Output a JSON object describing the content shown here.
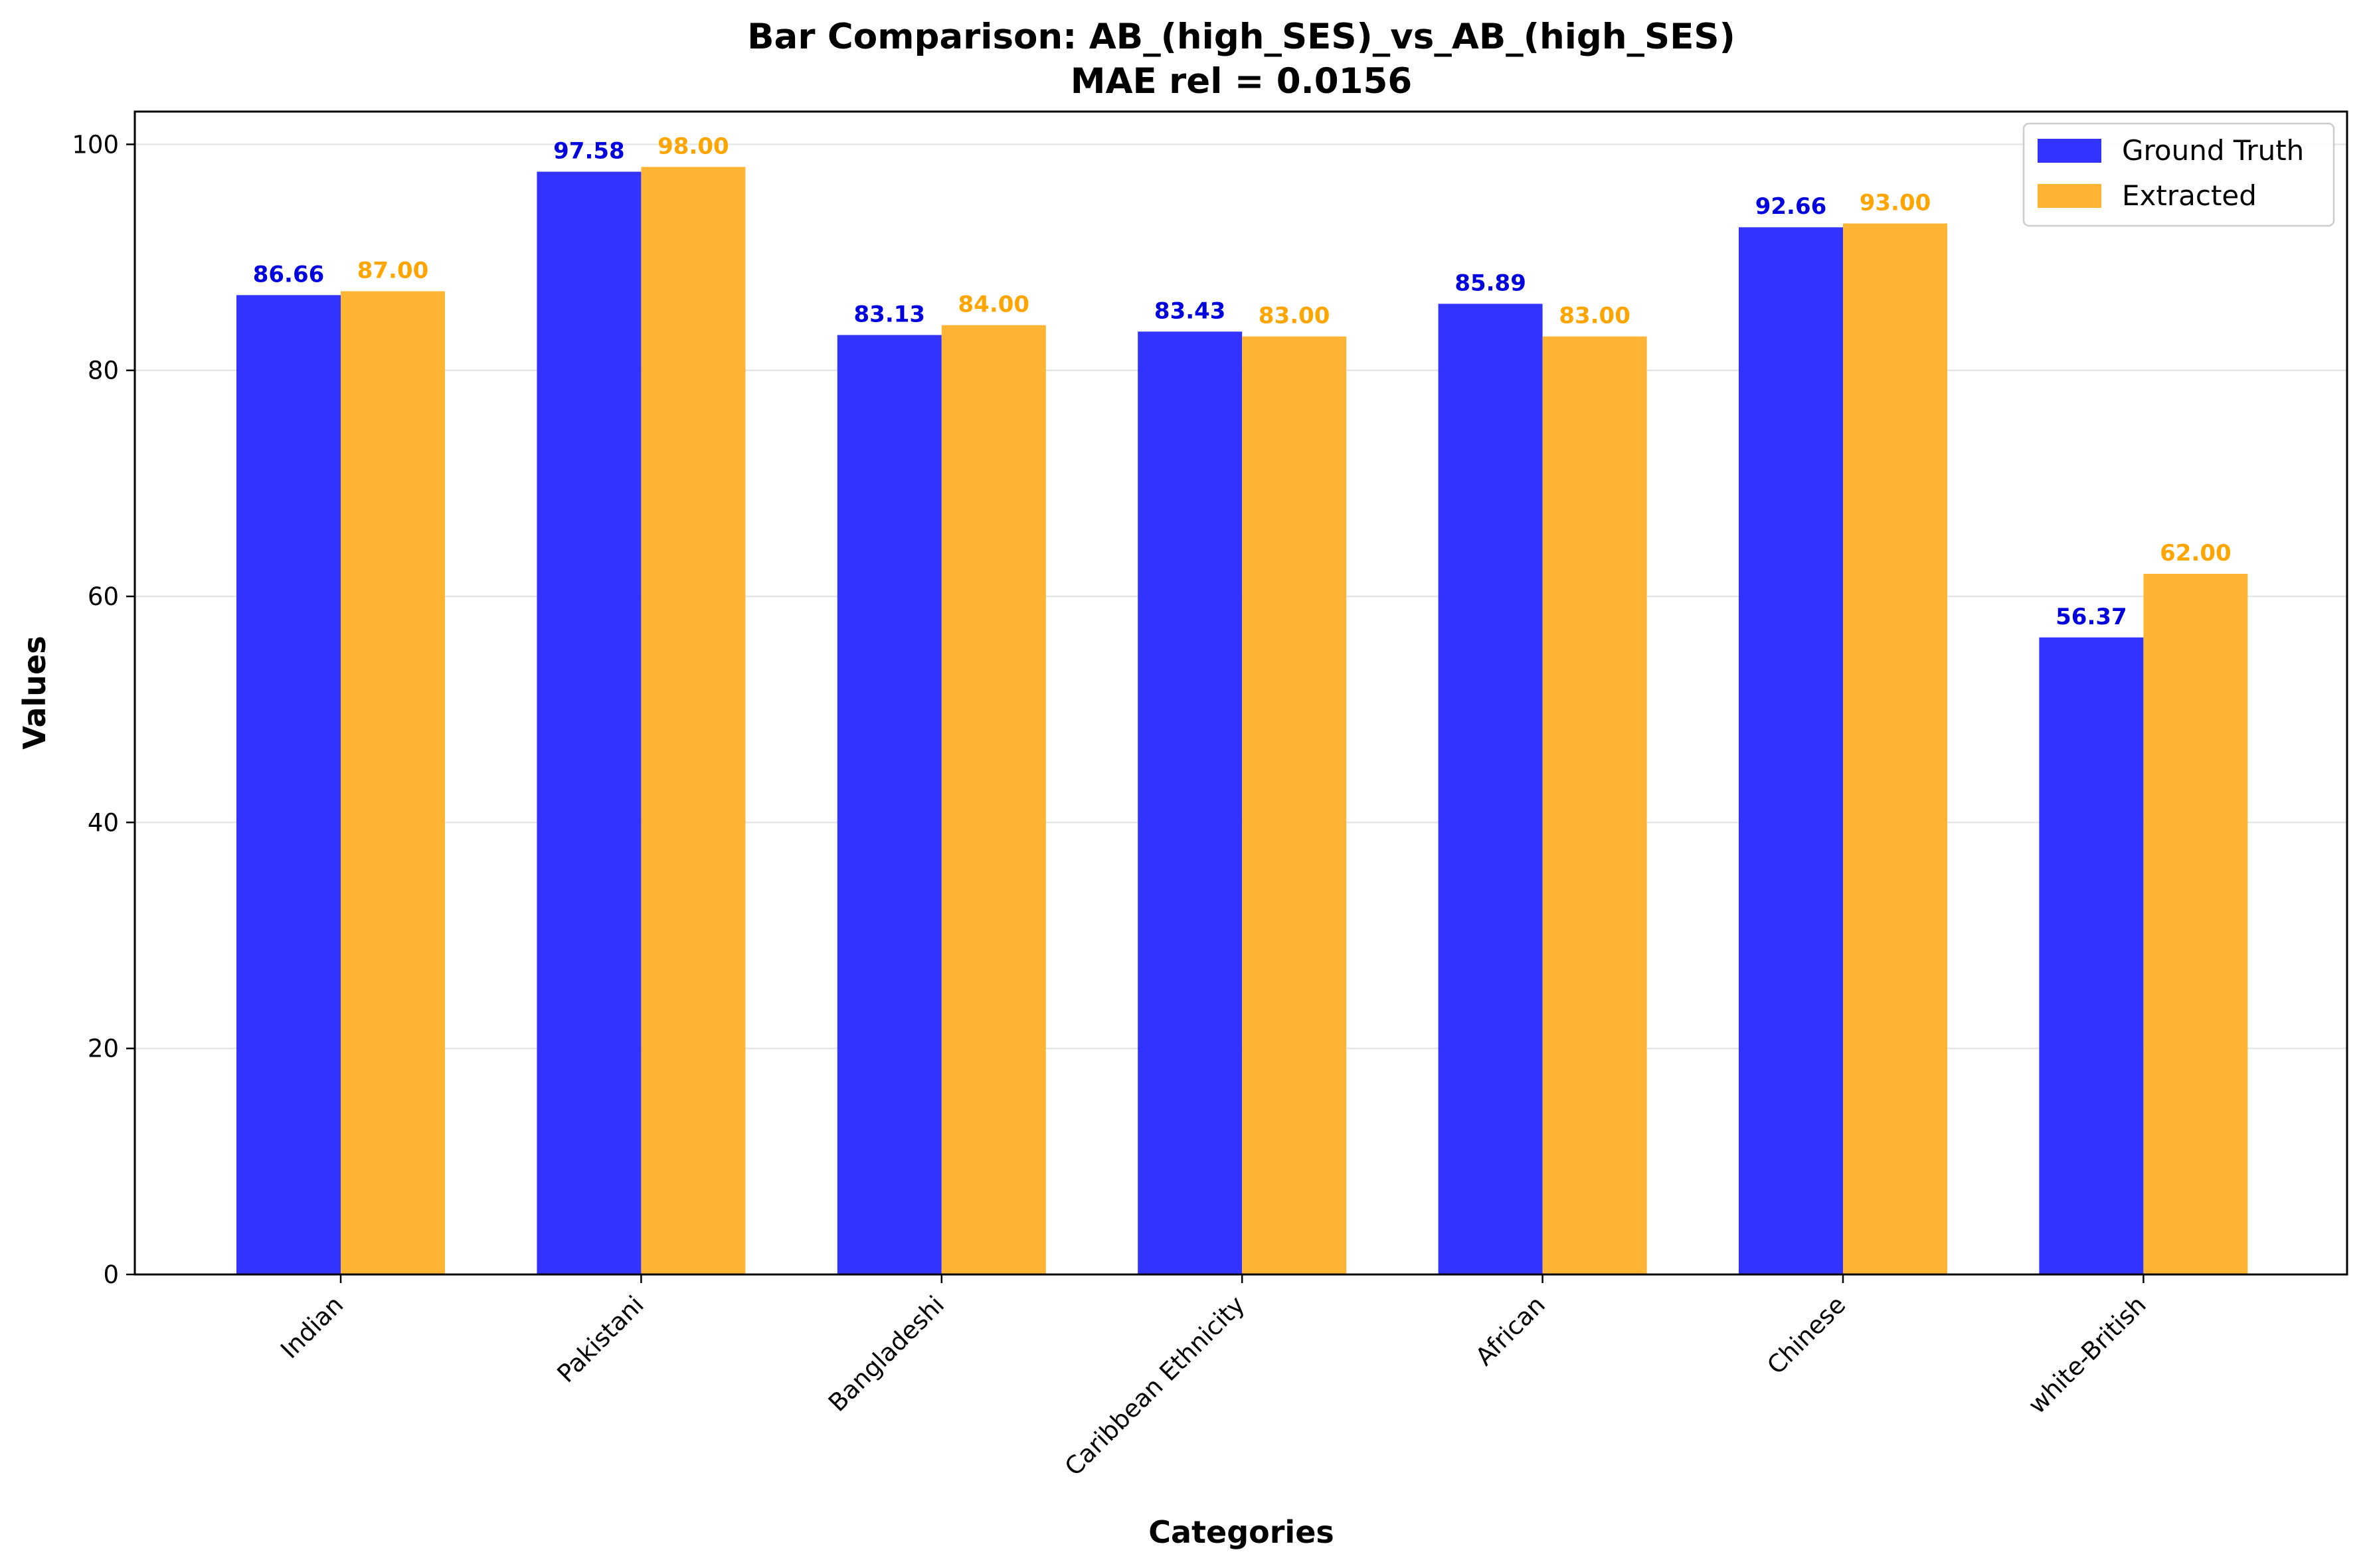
{
  "chart_data": {
    "type": "bar",
    "title": "Bar Comparison: AB_(high_SES)_vs_AB_(high_SES)",
    "subtitle": "MAE rel = 0.0156",
    "xlabel": "Categories",
    "ylabel": "Values",
    "categories": [
      "Indian",
      "Pakistani",
      "Bangladeshi",
      "Caribbean Ethnicity",
      "African",
      "Chinese",
      "white-British"
    ],
    "series": [
      {
        "name": "Ground Truth",
        "color": "#3333ff",
        "label_color": "#0000dd",
        "values": [
          86.66,
          97.58,
          83.13,
          83.43,
          85.89,
          92.66,
          56.37
        ],
        "labels": [
          "86.66",
          "97.58",
          "83.13",
          "83.43",
          "85.89",
          "92.66",
          "56.37"
        ]
      },
      {
        "name": "Extracted",
        "color": "#ffb533",
        "label_color": "#ffa500",
        "values": [
          87.0,
          98.0,
          84.0,
          83.0,
          83.0,
          93.0,
          62.0
        ],
        "labels": [
          "87.00",
          "98.00",
          "84.00",
          "83.00",
          "83.00",
          "93.00",
          "62.00"
        ]
      }
    ],
    "ylim": [
      0,
      102.9
    ],
    "yticks": [
      0,
      20,
      40,
      60,
      80,
      100
    ],
    "ytick_labels": [
      "0",
      "20",
      "40",
      "60",
      "80",
      "100"
    ],
    "grid": "y-axis, light gray",
    "legend_position": "top-right"
  }
}
